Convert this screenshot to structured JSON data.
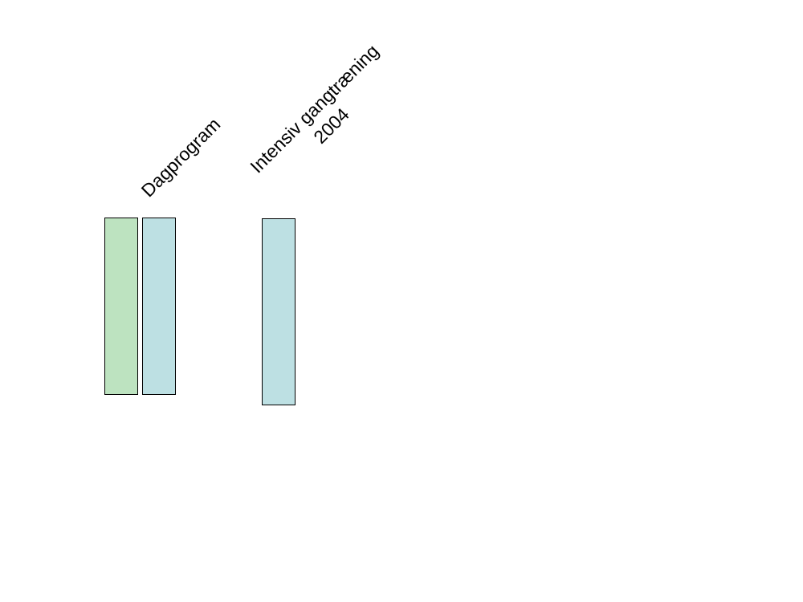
{
  "labels": {
    "dagprogram": "Dagprogram",
    "intensiv_line1": "Intensiv gangtræning",
    "intensiv_line2": "2004"
  },
  "colors": {
    "green_box": "#bde3c0",
    "blue_box": "#bde0e3"
  }
}
